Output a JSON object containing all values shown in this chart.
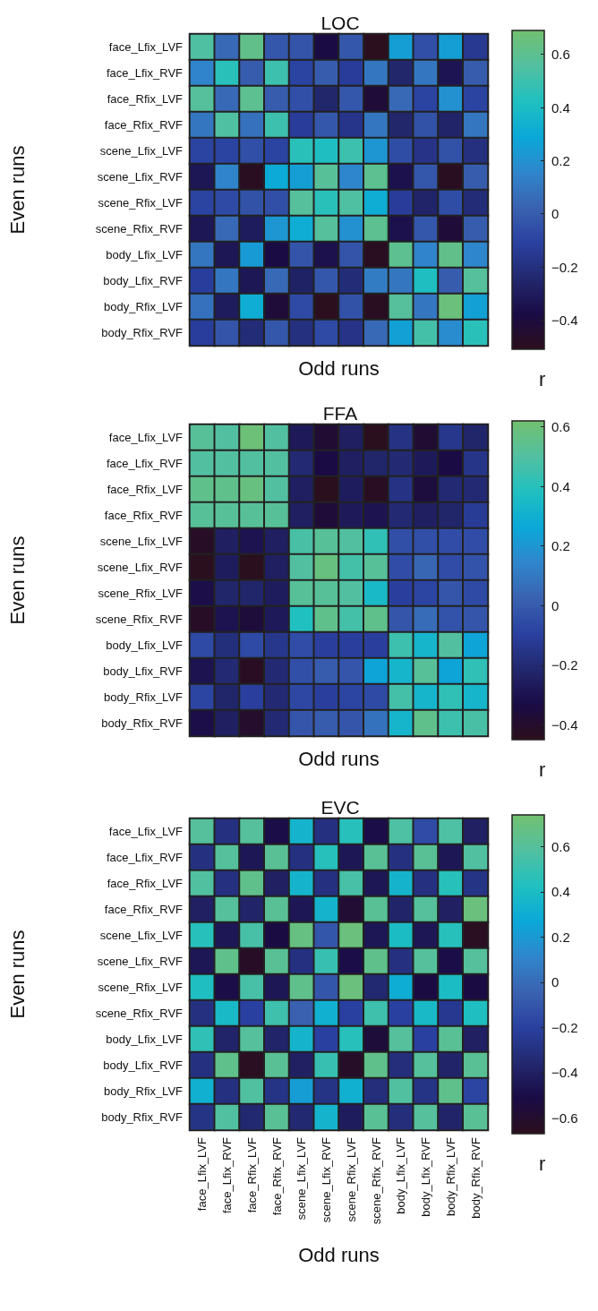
{
  "chart_data": [
    {
      "type": "heatmap",
      "title": "LOC",
      "xlabel": "Odd runs",
      "ylabel": "Even runs",
      "clabel": "r",
      "tick_labels": "y",
      "categories": [
        null,
        null,
        null,
        null,
        null,
        null,
        null,
        null,
        null,
        null,
        null,
        null
      ],
      "y_categories": [
        "face_Lfix_LVF",
        "face_Lfix_RVF",
        "face_Rfix_LVF",
        "face_Rfix_RVF",
        "scene_Lfix_LVF",
        "scene_Lfix_RVF",
        "scene_Rfix_LVF",
        "scene_Rfix_RVF",
        "body_Lfix_LVF",
        "body_Lfix_RVF",
        "body_Rfix_LVF",
        "body_Rfix_RVF"
      ],
      "cells": [
        [
          0.55,
          0.05,
          0.62,
          -0.02,
          -0.03,
          -0.38,
          -0.02,
          -0.5,
          0.25,
          -0.05,
          0.25,
          -0.15
        ],
        [
          0.15,
          0.45,
          0.0,
          0.5,
          -0.1,
          0.0,
          -0.13,
          0.1,
          -0.25,
          0.1,
          -0.33,
          0.0
        ],
        [
          0.57,
          0.05,
          0.6,
          0.0,
          -0.05,
          -0.25,
          -0.02,
          -0.42,
          0.05,
          -0.1,
          0.2,
          -0.1
        ],
        [
          0.1,
          0.55,
          0.08,
          0.5,
          -0.13,
          -0.02,
          -0.17,
          0.1,
          -0.25,
          -0.04,
          -0.26,
          0.1
        ],
        [
          -0.1,
          -0.1,
          -0.05,
          -0.1,
          0.45,
          0.42,
          0.5,
          0.22,
          -0.06,
          -0.18,
          -0.04,
          -0.2
        ],
        [
          -0.32,
          0.15,
          -0.49,
          0.3,
          0.25,
          0.58,
          0.16,
          0.6,
          -0.35,
          -0.02,
          -0.49,
          0.0
        ],
        [
          -0.1,
          -0.07,
          -0.04,
          -0.05,
          0.57,
          0.45,
          0.55,
          0.32,
          -0.13,
          -0.26,
          -0.06,
          -0.22
        ],
        [
          -0.32,
          0.05,
          -0.3,
          0.22,
          0.32,
          0.57,
          0.2,
          0.6,
          -0.35,
          -0.02,
          -0.42,
          0.0
        ],
        [
          0.1,
          -0.32,
          0.24,
          -0.38,
          -0.03,
          -0.35,
          -0.03,
          -0.49,
          0.6,
          0.15,
          0.62,
          0.16
        ],
        [
          -0.12,
          0.1,
          -0.32,
          0.05,
          -0.27,
          -0.02,
          -0.22,
          0.12,
          0.1,
          0.42,
          0.0,
          0.57
        ],
        [
          0.08,
          -0.3,
          0.32,
          -0.42,
          -0.07,
          -0.5,
          -0.04,
          -0.49,
          0.57,
          0.1,
          0.66,
          0.26
        ],
        [
          -0.12,
          -0.03,
          -0.22,
          -0.02,
          -0.2,
          -0.07,
          -0.18,
          0.05,
          0.26,
          0.52,
          0.18,
          0.45
        ]
      ],
      "clim": [
        -0.51,
        0.69
      ],
      "cticks": [
        -0.4,
        -0.2,
        0,
        0.2,
        0.4,
        0.6
      ]
    },
    {
      "type": "heatmap",
      "title": "FFA",
      "xlabel": "Odd runs",
      "ylabel": "Even runs",
      "clabel": "r",
      "tick_labels": "y",
      "categories": [
        null,
        null,
        null,
        null,
        null,
        null,
        null,
        null,
        null,
        null,
        null,
        null
      ],
      "y_categories": [
        "face_Lfix_LVF",
        "face_Lfix_RVF",
        "face_Rfix_LVF",
        "face_Rfix_RVF",
        "scene_Lfix_LVF",
        "scene_Lfix_RVF",
        "scene_Rfix_LVF",
        "scene_Rfix_RVF",
        "body_Lfix_LVF",
        "body_Lfix_RVF",
        "body_Rfix_LVF",
        "body_Rfix_RVF"
      ],
      "cells": [
        [
          0.52,
          0.5,
          0.6,
          0.5,
          -0.27,
          -0.38,
          -0.25,
          -0.44,
          -0.16,
          -0.38,
          -0.14,
          -0.22
        ],
        [
          0.5,
          0.5,
          0.5,
          0.5,
          -0.2,
          -0.33,
          -0.25,
          -0.22,
          -0.2,
          -0.27,
          -0.33,
          -0.15
        ],
        [
          0.55,
          0.55,
          0.58,
          0.5,
          -0.25,
          -0.44,
          -0.26,
          -0.43,
          -0.16,
          -0.35,
          -0.2,
          -0.2
        ],
        [
          0.52,
          0.52,
          0.52,
          0.52,
          -0.25,
          -0.37,
          -0.27,
          -0.3,
          -0.2,
          -0.25,
          -0.22,
          -0.12
        ],
        [
          -0.42,
          -0.25,
          -0.3,
          -0.25,
          0.48,
          0.52,
          0.5,
          0.42,
          -0.04,
          -0.04,
          -0.05,
          -0.05
        ],
        [
          -0.44,
          -0.26,
          -0.44,
          -0.25,
          0.5,
          0.58,
          0.47,
          0.52,
          -0.05,
          0.04,
          -0.05,
          -0.03
        ],
        [
          -0.32,
          -0.22,
          -0.22,
          -0.26,
          0.52,
          0.52,
          0.5,
          0.35,
          -0.1,
          -0.08,
          -0.02,
          -0.06
        ],
        [
          -0.42,
          -0.3,
          -0.36,
          -0.27,
          0.38,
          0.55,
          0.47,
          0.55,
          -0.02,
          0.06,
          -0.03,
          -0.02
        ],
        [
          -0.06,
          -0.18,
          -0.06,
          -0.14,
          -0.05,
          -0.1,
          -0.1,
          -0.1,
          0.45,
          0.33,
          0.5,
          0.25
        ],
        [
          -0.3,
          -0.2,
          -0.43,
          -0.2,
          -0.04,
          0.0,
          -0.02,
          0.25,
          0.33,
          0.52,
          0.25,
          0.42
        ],
        [
          -0.08,
          -0.22,
          -0.1,
          -0.2,
          -0.07,
          -0.1,
          -0.08,
          -0.06,
          0.47,
          0.33,
          0.42,
          0.33
        ],
        [
          -0.32,
          -0.25,
          -0.4,
          -0.2,
          -0.02,
          0.0,
          -0.02,
          0.08,
          0.33,
          0.55,
          0.45,
          0.48
        ]
      ],
      "clim": [
        -0.45,
        0.62
      ],
      "cticks": [
        -0.4,
        -0.2,
        0,
        0.2,
        0.4,
        0.6
      ]
    },
    {
      "type": "heatmap",
      "title": "EVC",
      "xlabel": "Odd runs",
      "ylabel": "Even runs",
      "clabel": "r",
      "categories": [
        "face_Lfix_LVF",
        "face_Lfix_RVF",
        "face_Rfix_LVF",
        "face_Rfix_RVF",
        "scene_Lfix_LVF",
        "scene_Lfix_RVF",
        "scene_Rfix_LVF",
        "scene_Rfix_RVF",
        "body_Lfix_LVF",
        "body_Lfix_RVF",
        "body_Rfix_LVF",
        "body_Rfix_RVF"
      ],
      "y_categories": [
        "face_Lfix_LVF",
        "face_Lfix_RVF",
        "face_Rfix_LVF",
        "face_Rfix_RVF",
        "scene_Lfix_LVF",
        "scene_Lfix_RVF",
        "scene_Rfix_LVF",
        "scene_Rfix_RVF",
        "body_Lfix_LVF",
        "body_Lfix_RVF",
        "body_Rfix_LVF",
        "body_Rfix_RVF"
      ],
      "cells": [
        [
          0.6,
          -0.3,
          0.6,
          -0.5,
          0.35,
          -0.3,
          0.45,
          -0.5,
          0.57,
          -0.15,
          0.57,
          -0.4
        ],
        [
          -0.3,
          0.6,
          -0.45,
          0.62,
          -0.3,
          0.45,
          -0.45,
          0.62,
          -0.3,
          0.62,
          -0.45,
          0.58
        ],
        [
          0.58,
          -0.3,
          0.65,
          -0.4,
          0.35,
          -0.3,
          0.55,
          -0.45,
          0.35,
          -0.3,
          0.45,
          -0.28
        ],
        [
          -0.4,
          0.6,
          -0.38,
          0.62,
          -0.45,
          0.35,
          -0.58,
          0.62,
          -0.38,
          0.6,
          -0.4,
          0.7
        ],
        [
          0.45,
          -0.45,
          0.55,
          -0.52,
          0.68,
          -0.1,
          0.7,
          -0.45,
          0.4,
          -0.45,
          0.45,
          -0.65
        ],
        [
          -0.45,
          0.65,
          -0.63,
          0.62,
          -0.3,
          0.5,
          -0.5,
          0.65,
          -0.3,
          0.6,
          -0.5,
          0.6
        ],
        [
          0.42,
          -0.5,
          0.55,
          -0.45,
          0.65,
          -0.1,
          0.7,
          -0.35,
          0.3,
          -0.52,
          0.4,
          -0.52
        ],
        [
          -0.3,
          0.38,
          -0.2,
          0.52,
          -0.05,
          0.32,
          -0.2,
          0.52,
          -0.2,
          0.38,
          -0.25,
          0.42
        ],
        [
          0.48,
          -0.38,
          0.6,
          -0.38,
          0.35,
          -0.2,
          0.45,
          -0.55,
          0.6,
          -0.2,
          0.62,
          -0.4
        ],
        [
          -0.3,
          0.65,
          -0.65,
          0.62,
          -0.4,
          0.5,
          -0.62,
          0.65,
          -0.32,
          0.6,
          -0.38,
          0.62
        ],
        [
          0.32,
          -0.3,
          0.58,
          -0.28,
          0.22,
          -0.28,
          0.32,
          -0.32,
          0.58,
          -0.28,
          0.65,
          -0.18
        ],
        [
          -0.28,
          0.58,
          -0.35,
          0.62,
          -0.35,
          0.35,
          -0.42,
          0.62,
          -0.32,
          0.6,
          -0.38,
          0.62
        ]
      ],
      "clim": [
        -0.67,
        0.74
      ],
      "cticks": [
        -0.6,
        -0.4,
        -0.2,
        0,
        0.2,
        0.4,
        0.6
      ]
    }
  ]
}
